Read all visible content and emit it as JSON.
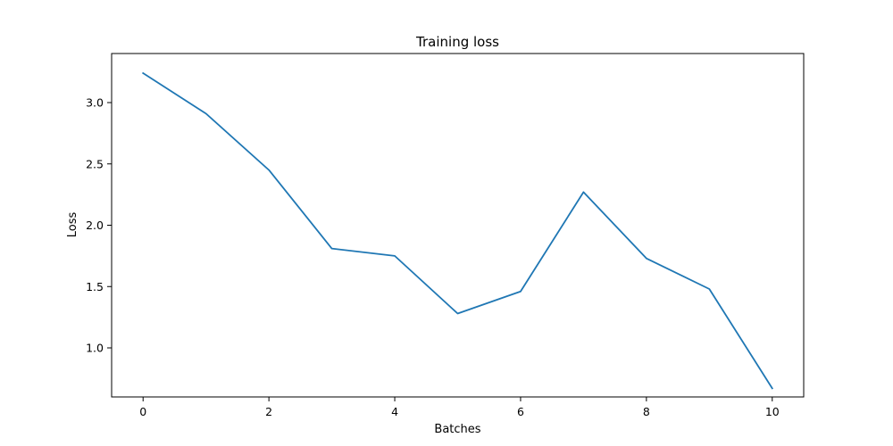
{
  "chart_data": {
    "type": "line",
    "title": "Training loss",
    "xlabel": "Batches",
    "ylabel": "Loss",
    "xlim": [
      -0.5,
      10.5
    ],
    "ylim": [
      0.6,
      3.4
    ],
    "xticks": [
      0,
      2,
      4,
      6,
      8,
      10
    ],
    "xtick_labels": [
      "0",
      "2",
      "4",
      "6",
      "8",
      "10"
    ],
    "yticks": [
      1.0,
      1.5,
      2.0,
      2.5,
      3.0
    ],
    "ytick_labels": [
      "1.0",
      "1.5",
      "2.0",
      "2.5",
      "3.0"
    ],
    "grid": false,
    "legend": "none",
    "series": [
      {
        "color": "#1f77b4",
        "x": [
          0,
          1,
          2,
          3,
          4,
          5,
          6,
          7,
          8,
          9,
          10
        ],
        "y": [
          3.24,
          2.91,
          2.45,
          1.81,
          1.75,
          1.28,
          1.46,
          2.27,
          1.73,
          1.48,
          0.67
        ]
      }
    ]
  }
}
